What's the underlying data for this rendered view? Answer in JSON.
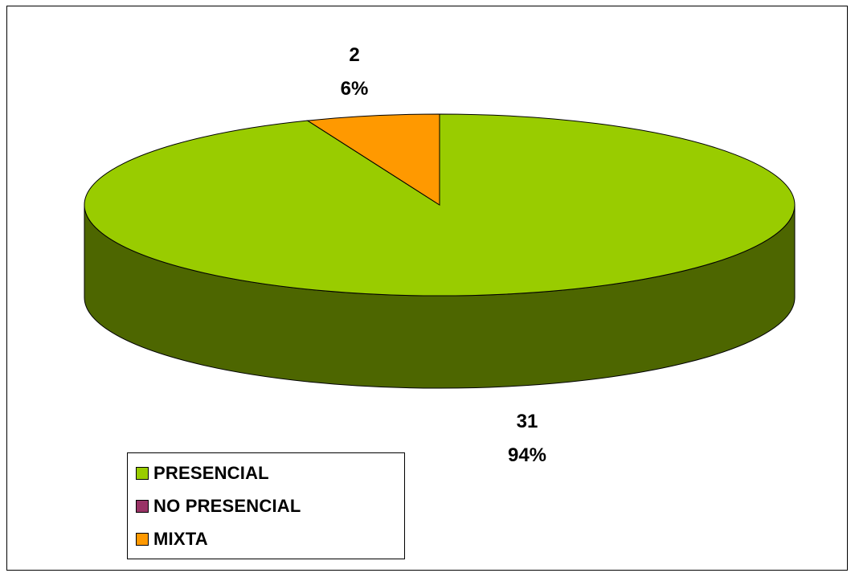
{
  "chart_data": {
    "type": "pie",
    "style": "3d",
    "categories": [
      "PRESENCIAL",
      "NO PRESENCIAL",
      "MIXTA"
    ],
    "values": [
      31,
      0,
      2
    ],
    "percents": [
      "94%",
      "0%",
      "6%"
    ],
    "colors": [
      "#99CC00",
      "#993366",
      "#FF9900"
    ],
    "side_color": "#4D6600",
    "legend_position": "bottom-left",
    "data_labels": [
      {
        "value": "31",
        "percent": "94%"
      },
      {
        "value": "2",
        "percent": "6%"
      }
    ]
  }
}
